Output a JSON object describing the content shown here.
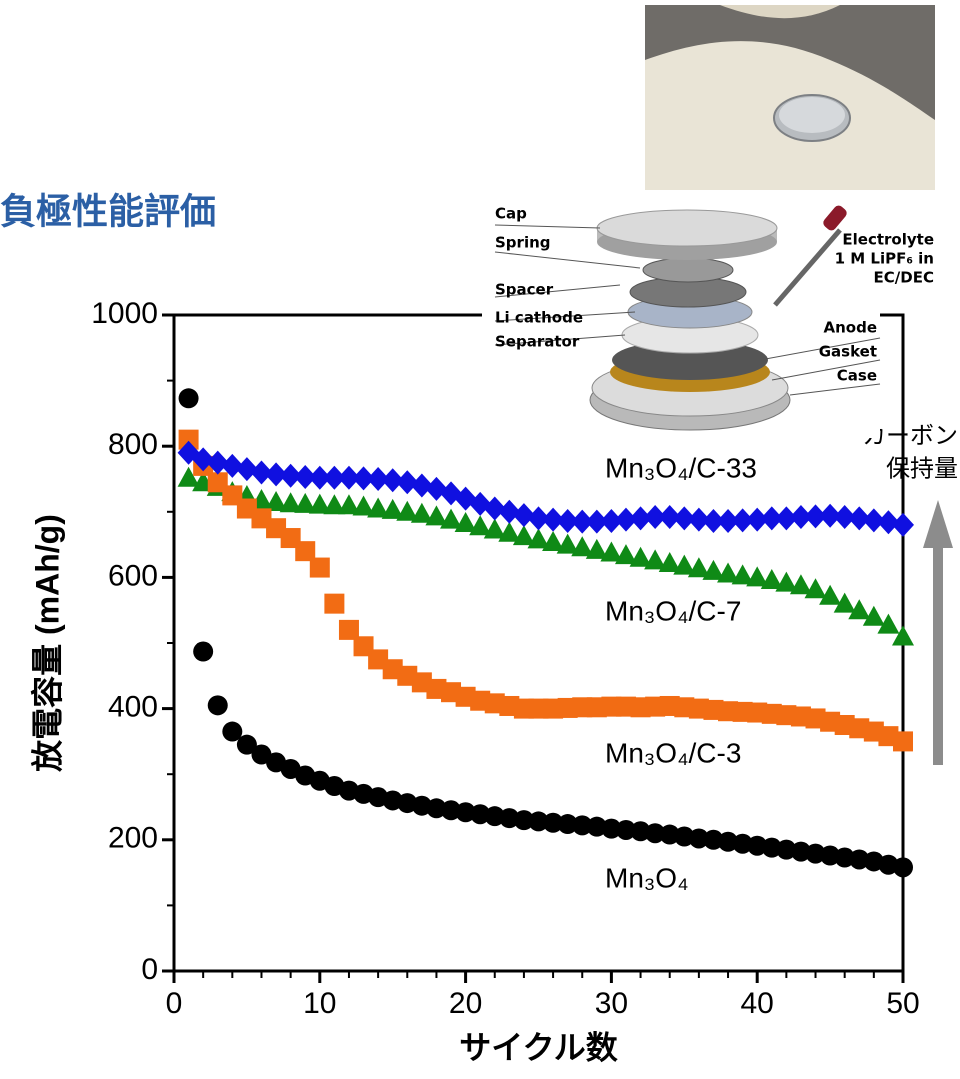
{
  "chart_data": {
    "type": "scatter",
    "title": "負極性能評価",
    "x_label": "サイクル数",
    "y_label": "放電容量 (mAh/g)",
    "x": [
      1,
      2,
      3,
      4,
      5,
      6,
      7,
      8,
      9,
      10,
      11,
      12,
      13,
      14,
      15,
      16,
      17,
      18,
      19,
      20,
      21,
      22,
      23,
      24,
      25,
      26,
      27,
      28,
      29,
      30,
      31,
      32,
      33,
      34,
      35,
      36,
      37,
      38,
      39,
      40,
      41,
      42,
      43,
      44,
      45,
      46,
      47,
      48,
      49,
      50
    ],
    "series": [
      {
        "name": "Mn₃O₄",
        "color": "#000000",
        "marker": "circle",
        "values": [
          873,
          487,
          405,
          365,
          345,
          330,
          318,
          308,
          298,
          290,
          282,
          275,
          270,
          265,
          260,
          256,
          252,
          248,
          245,
          242,
          239,
          236,
          233,
          230,
          228,
          226,
          224,
          222,
          220,
          217,
          215,
          213,
          210,
          208,
          205,
          202,
          200,
          197,
          194,
          191,
          188,
          185,
          182,
          179,
          176,
          173,
          170,
          167,
          162,
          158
        ]
      },
      {
        "name": "Mn₃O₄/C-3",
        "color": "#f26c14",
        "marker": "square",
        "values": [
          810,
          770,
          745,
          725,
          705,
          690,
          675,
          660,
          640,
          615,
          560,
          520,
          495,
          475,
          460,
          450,
          440,
          430,
          425,
          418,
          412,
          408,
          404,
          400,
          400,
          400,
          401,
          402,
          402,
          403,
          403,
          402,
          403,
          404,
          402,
          400,
          398,
          396,
          395,
          394,
          392,
          390,
          388,
          385,
          380,
          375,
          370,
          365,
          358,
          350
        ]
      },
      {
        "name": "Mn₃O₄/C-7",
        "color": "#0f8a16",
        "marker": "triangle",
        "values": [
          752,
          745,
          738,
          730,
          724,
          718,
          715,
          713,
          712,
          711,
          710,
          710,
          708,
          705,
          703,
          700,
          697,
          693,
          688,
          683,
          678,
          673,
          668,
          663,
          658,
          654,
          650,
          646,
          642,
          638,
          634,
          630,
          626,
          622,
          618,
          614,
          610,
          606,
          603,
          600,
          596,
          592,
          588,
          582,
          572,
          560,
          550,
          540,
          528,
          510
        ]
      },
      {
        "name": "Mn₃O₄/C-33",
        "color": "#1010e0",
        "marker": "diamond",
        "values": [
          790,
          780,
          775,
          770,
          765,
          760,
          757,
          755,
          753,
          752,
          752,
          752,
          751,
          750,
          748,
          745,
          740,
          735,
          728,
          720,
          712,
          705,
          700,
          695,
          690,
          688,
          686,
          685,
          685,
          686,
          688,
          690,
          692,
          692,
          690,
          688,
          686,
          686,
          687,
          688,
          690,
          690,
          692,
          693,
          694,
          692,
          690,
          687,
          684,
          680
        ]
      }
    ],
    "xlim": [
      0,
      50
    ],
    "xticks": [
      0,
      10,
      20,
      30,
      40,
      50
    ],
    "xminorticks": [
      2,
      4,
      6,
      8,
      12,
      14,
      16,
      18,
      22,
      24,
      26,
      28,
      32,
      34,
      36,
      38,
      42,
      44,
      46,
      48
    ],
    "ylim": [
      0,
      1000
    ],
    "yticks": [
      0,
      200,
      400,
      600,
      800,
      1000
    ],
    "yminorticks": [
      100,
      300,
      500,
      700,
      900
    ],
    "annotations": [
      "カーボン",
      "保持量"
    ],
    "arrow_color": "#8c8c8c"
  },
  "diagram": {
    "labels": [
      "Cap",
      "Spring",
      "Spacer",
      "Li cathode",
      "Separator",
      "Anode",
      "Gasket",
      "Case"
    ],
    "electrolyte": [
      "Electrolyte",
      "1 M LiPF₆ in",
      "EC/DEC"
    ]
  }
}
